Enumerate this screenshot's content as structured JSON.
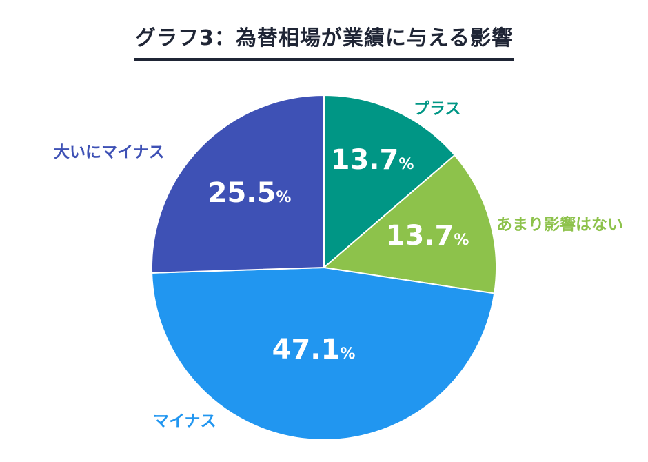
{
  "chart_data": {
    "type": "pie",
    "title": "グラフ3：為替相場が業績に与える影響",
    "unit": "%",
    "start_angle": 0,
    "direction": "clockwise",
    "categories": [
      "プラス",
      "あまり影響はない",
      "マイナス",
      "大いにマイナス"
    ],
    "values": [
      13.7,
      13.7,
      47.1,
      25.5
    ],
    "value_labels": [
      "13.7",
      "13.7",
      "47.1",
      "25.5"
    ],
    "colors": [
      "#009685",
      "#8dc24b",
      "#2196f0",
      "#3e51b5"
    ],
    "grid": false,
    "legend": "none"
  }
}
